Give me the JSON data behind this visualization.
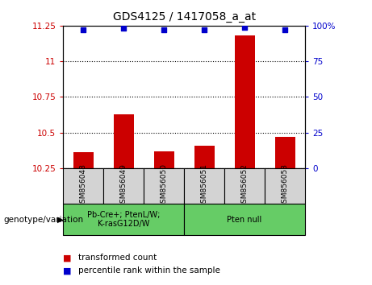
{
  "title": "GDS4125 / 1417058_a_at",
  "samples": [
    "GSM856048",
    "GSM856049",
    "GSM856050",
    "GSM856051",
    "GSM856052",
    "GSM856053"
  ],
  "bar_values": [
    10.36,
    10.63,
    10.37,
    10.41,
    11.18,
    10.47
  ],
  "percentile_values": [
    97,
    98,
    97,
    97,
    99,
    97
  ],
  "ylim_left": [
    10.25,
    11.25
  ],
  "ylim_right": [
    0,
    100
  ],
  "yticks_left": [
    10.25,
    10.5,
    10.75,
    11.0,
    11.25
  ],
  "yticks_right": [
    0,
    25,
    50,
    75,
    100
  ],
  "ytick_labels_left": [
    "10.25",
    "10.5",
    "10.75",
    "11",
    "11.25"
  ],
  "ytick_labels_right": [
    "0",
    "25",
    "50",
    "75",
    "100%"
  ],
  "bar_color": "#cc0000",
  "scatter_color": "#0000cc",
  "bar_bottom": 10.25,
  "group1_label": "Pb-Cre+; PtenL/W;\nK-rasG12D/W",
  "group2_label": "Pten null",
  "group1_indices": [
    0,
    1,
    2
  ],
  "group2_indices": [
    3,
    4,
    5
  ],
  "group_label_header": "genotype/variation",
  "legend_bar_label": "transformed count",
  "legend_scatter_label": "percentile rank within the sample",
  "sample_bg_color": "#d3d3d3",
  "group_bg_color": "#66cc66",
  "plot_bg_color": "#ffffff"
}
